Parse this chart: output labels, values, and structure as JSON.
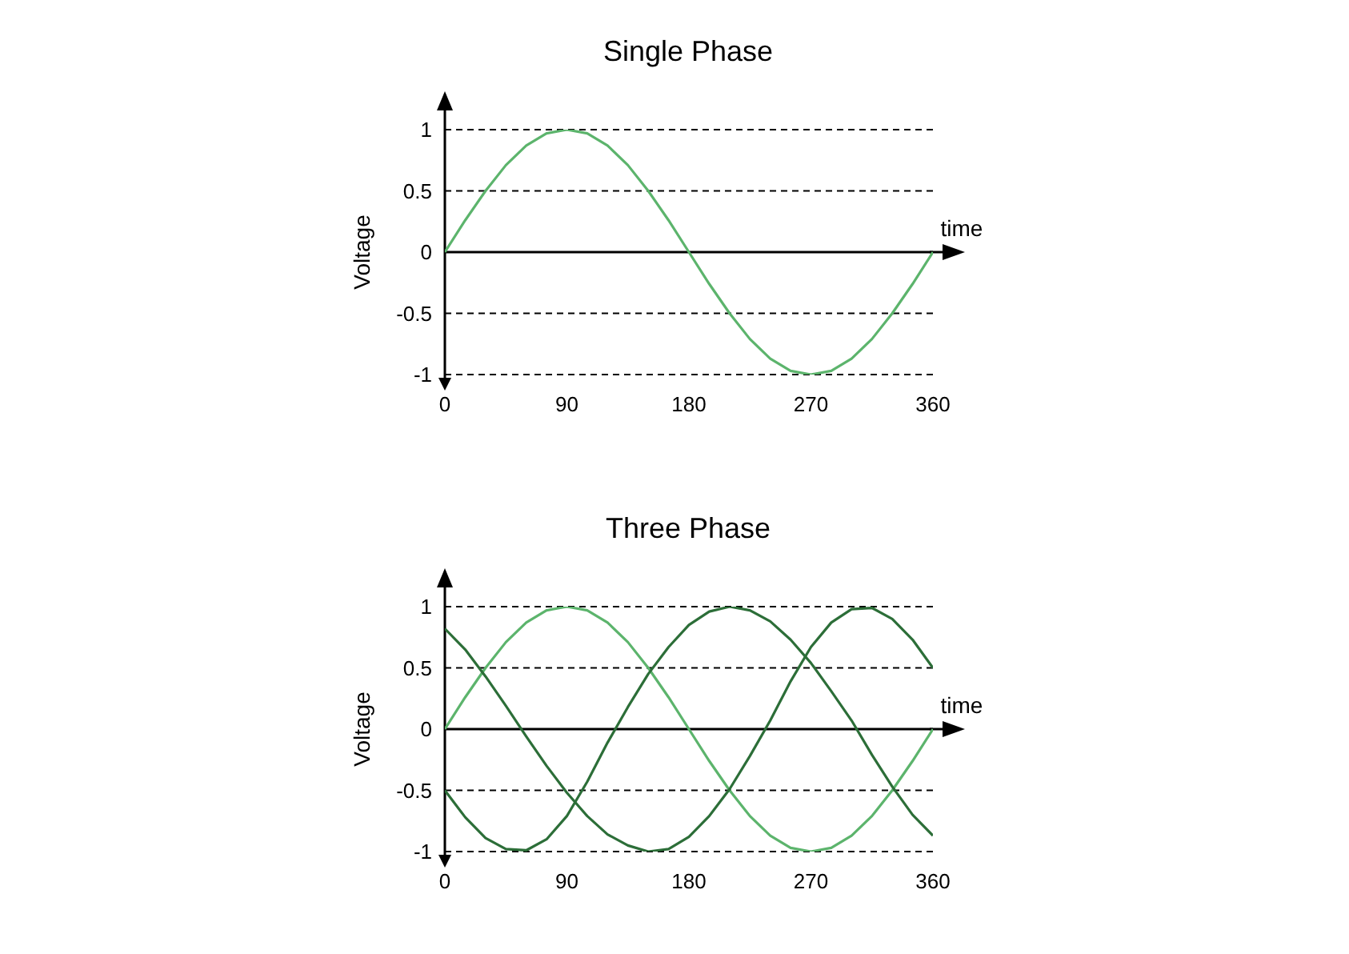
{
  "chart_data": [
    {
      "type": "line",
      "title": "Single Phase",
      "xlabel": "time",
      "ylabel": "Voltage",
      "x": [
        0,
        15,
        30,
        45,
        60,
        75,
        90,
        105,
        120,
        135,
        150,
        165,
        180,
        195,
        210,
        225,
        240,
        255,
        270,
        285,
        300,
        315,
        330,
        345,
        360
      ],
      "xlim": [
        0,
        360
      ],
      "xticks": [
        0,
        90,
        180,
        270,
        360
      ],
      "ylim": [
        -1,
        1
      ],
      "yticks": [
        -1,
        -0.5,
        0,
        0.5,
        1
      ],
      "grid": "y",
      "series": [
        {
          "color": "#5cb46c",
          "values": [
            0,
            0.26,
            0.5,
            0.71,
            0.87,
            0.97,
            1,
            0.97,
            0.87,
            0.71,
            0.5,
            0.26,
            0,
            -0.26,
            -0.5,
            -0.71,
            -0.87,
            -0.97,
            -1,
            -0.97,
            -0.87,
            -0.71,
            -0.5,
            -0.26,
            0
          ]
        }
      ]
    },
    {
      "type": "line",
      "title": "Three Phase",
      "xlabel": "time",
      "ylabel": "Voltage",
      "x": [
        0,
        15,
        30,
        45,
        60,
        75,
        90,
        105,
        120,
        135,
        150,
        165,
        180,
        195,
        210,
        225,
        240,
        255,
        270,
        285,
        300,
        315,
        330,
        345,
        360
      ],
      "xlim": [
        0,
        360
      ],
      "xticks": [
        0,
        90,
        180,
        270,
        360
      ],
      "ylim": [
        -1,
        1
      ],
      "yticks": [
        -1,
        -0.5,
        0,
        0.5,
        1
      ],
      "grid": "y",
      "series": [
        {
          "color": "#5cb46c",
          "values": [
            0,
            0.26,
            0.5,
            0.71,
            0.87,
            0.97,
            1,
            0.97,
            0.87,
            0.71,
            0.5,
            0.26,
            0,
            -0.26,
            -0.5,
            -0.71,
            -0.87,
            -0.97,
            -1,
            -0.97,
            -0.87,
            -0.71,
            -0.5,
            -0.26,
            0
          ]
        },
        {
          "color": "#2c6e38",
          "values": [
            0.82,
            0.65,
            0.43,
            0.19,
            -0.06,
            -0.3,
            -0.52,
            -0.71,
            -0.86,
            -0.95,
            -1,
            -0.98,
            -0.88,
            -0.71,
            -0.49,
            -0.22,
            0.07,
            0.39,
            0.67,
            0.87,
            0.98,
            0.99,
            0.9,
            0.73,
            0.5
          ]
        },
        {
          "color": "#2c6e38",
          "values": [
            -0.5,
            -0.72,
            -0.89,
            -0.98,
            -0.99,
            -0.9,
            -0.71,
            -0.43,
            -0.11,
            0.18,
            0.45,
            0.67,
            0.85,
            0.96,
            1,
            0.97,
            0.88,
            0.73,
            0.54,
            0.31,
            0.07,
            -0.21,
            -0.47,
            -0.7,
            -0.87
          ]
        }
      ]
    }
  ]
}
